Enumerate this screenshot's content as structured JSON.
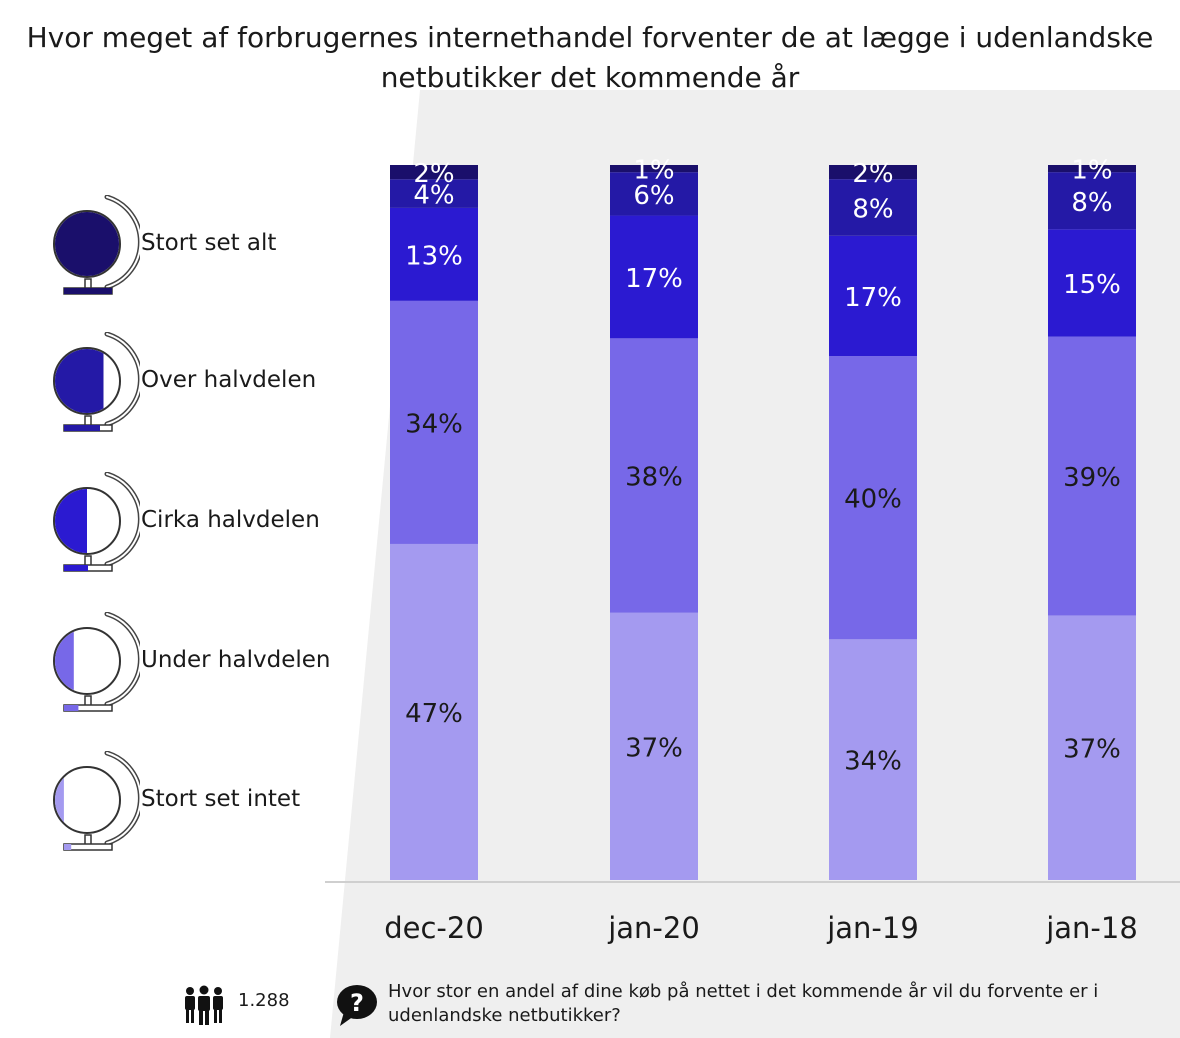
{
  "title_line1": "Hvor meget af forbrugernes internethandel forventer de at lægge i udenlandske",
  "title_line2": "netbutikker det kommende år",
  "legend": [
    {
      "label": "Stort set alt",
      "color": "#1a0f6b",
      "fill": 1.0
    },
    {
      "label": "Over halvdelen",
      "color": "#2419a6",
      "fill": 0.75
    },
    {
      "label": "Cirka halvdelen",
      "color": "#2b1ad1",
      "fill": 0.5
    },
    {
      "label": "Under halvdelen",
      "color": "#7768e8",
      "fill": 0.3
    },
    {
      "label": "Stort set intet",
      "color": "#a49af0",
      "fill": 0.15
    }
  ],
  "chart_data": {
    "type": "bar",
    "stacked": true,
    "percent": true,
    "categories": [
      "dec-20",
      "jan-20",
      "jan-19",
      "jan-18"
    ],
    "series": [
      {
        "name": "Stort set intet",
        "color": "#a49af0",
        "values": [
          47,
          37,
          34,
          37
        ]
      },
      {
        "name": "Under halvdelen",
        "color": "#7768e8",
        "values": [
          34,
          38,
          40,
          39
        ]
      },
      {
        "name": "Cirka halvdelen",
        "color": "#2b1ad1",
        "values": [
          13,
          17,
          17,
          15
        ]
      },
      {
        "name": "Over halvdelen",
        "color": "#2419a6",
        "values": [
          4,
          6,
          8,
          8
        ]
      },
      {
        "name": "Stort set alt",
        "color": "#1a0f6b",
        "values": [
          2,
          1,
          2,
          1
        ]
      }
    ],
    "ylim": [
      0,
      100
    ]
  },
  "footer": {
    "respondents": "1.288",
    "question": "Hvor stor en andel af dine køb på nettet i det kommende år vil du forvente er i udenlandske netbutikker?"
  }
}
